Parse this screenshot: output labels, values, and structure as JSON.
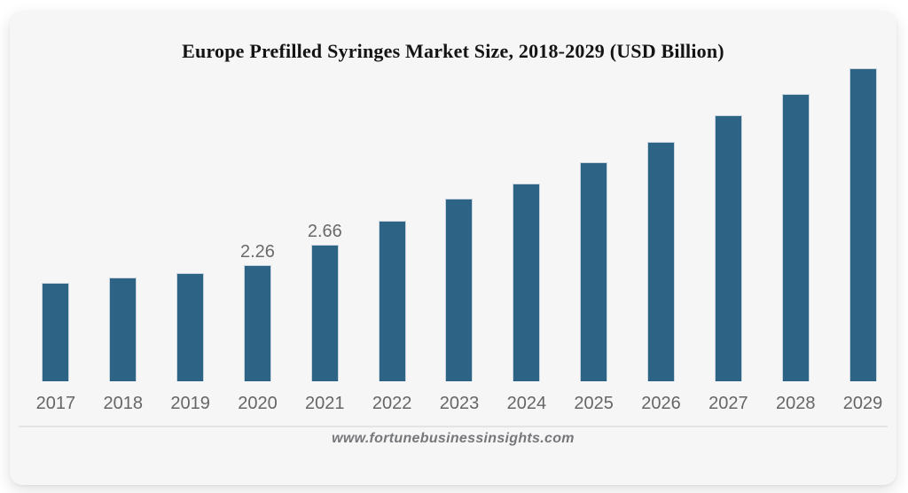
{
  "page": {
    "background": "#ffffff"
  },
  "card": {
    "background": "#f6f6f7"
  },
  "chart_data": {
    "type": "bar",
    "title": "Europe Prefilled Syringes Market Size, 2018-2029 (USD Billion)",
    "categories": [
      "2017",
      "2018",
      "2019",
      "2020",
      "2021",
      "2022",
      "2023",
      "2024",
      "2025",
      "2026",
      "2027",
      "2028",
      "2029"
    ],
    "values": [
      1.91,
      2.01,
      2.1,
      2.26,
      2.66,
      3.12,
      3.55,
      3.85,
      4.25,
      4.66,
      5.18,
      5.58,
      6.09
    ],
    "data_labels": {
      "2020": "2.26",
      "2021": "2.66"
    },
    "xlabel": "",
    "ylabel": "",
    "ylim": [
      0,
      6.5
    ],
    "grid": false,
    "legend": false,
    "bar_color": "#2d6486",
    "bar_border_color": "#c7d4de",
    "data_label_color": "#6a6a6a",
    "tick_label_color": "#666668",
    "axis_line_color": "#e4e4e6",
    "note": "Only 2020 and 2021 bars display numeric data labels; other values estimated from bar heights"
  },
  "footer": {
    "source": "www.fortunebusinessinsights.com"
  }
}
